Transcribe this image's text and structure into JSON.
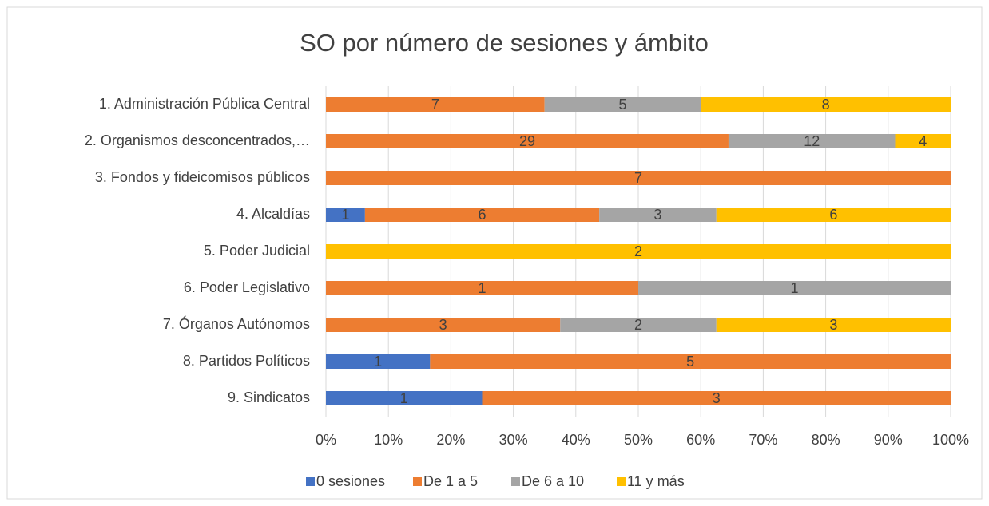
{
  "chart_data": {
    "type": "bar",
    "orientation": "horizontal",
    "stacking": "percent",
    "title": "SO por número de sesiones y ámbito",
    "categories": [
      "1. Administración Pública Central",
      "2. Organismos desconcentrados,…",
      "3. Fondos y fideicomisos públicos",
      "4. Alcaldías",
      "5. Poder Judicial",
      "6. Poder Legislativo",
      "7. Órganos Autónomos",
      "8. Partidos Políticos",
      "9. Sindicatos"
    ],
    "series": [
      {
        "name": "0 sesiones",
        "color": "#4472c4",
        "values": [
          0,
          0,
          0,
          1,
          0,
          0,
          0,
          1,
          1
        ]
      },
      {
        "name": "De 1 a 5",
        "color": "#ed7d31",
        "values": [
          7,
          29,
          7,
          6,
          0,
          1,
          3,
          5,
          3
        ]
      },
      {
        "name": "De 6 a 10",
        "color": "#a5a5a5",
        "values": [
          5,
          12,
          0,
          3,
          0,
          1,
          2,
          0,
          0
        ]
      },
      {
        "name": "11 y más",
        "color": "#ffc000",
        "values": [
          8,
          4,
          0,
          6,
          2,
          0,
          3,
          0,
          0
        ]
      }
    ],
    "xlim": [
      0,
      100
    ],
    "xticks": [
      {
        "value": 0,
        "label": "0%"
      },
      {
        "value": 10,
        "label": "10%"
      },
      {
        "value": 20,
        "label": "20%"
      },
      {
        "value": 30,
        "label": "30%"
      },
      {
        "value": 40,
        "label": "40%"
      },
      {
        "value": 50,
        "label": "50%"
      },
      {
        "value": 60,
        "label": "60%"
      },
      {
        "value": 70,
        "label": "70%"
      },
      {
        "value": 80,
        "label": "80%"
      },
      {
        "value": 90,
        "label": "90%"
      },
      {
        "value": 100,
        "label": "100%"
      }
    ],
    "grid": true,
    "legend": "bottom"
  }
}
